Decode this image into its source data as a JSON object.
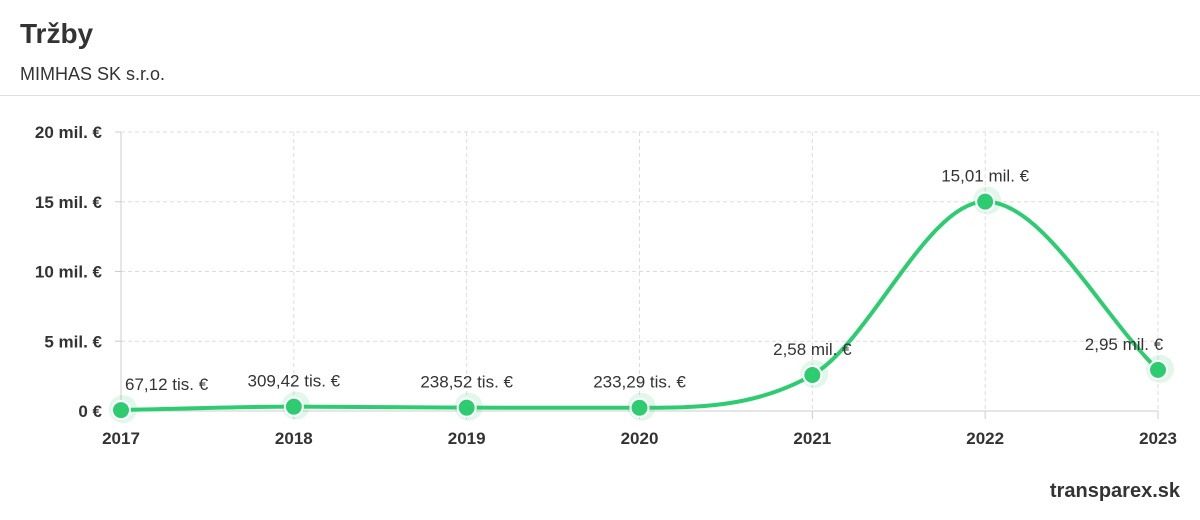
{
  "header": {
    "title": "Tržby",
    "subtitle": "MIMHAS SK s.r.o."
  },
  "credit": "transparex.sk",
  "colors": {
    "line": "#2ecc71",
    "grid": "#dddddd",
    "axis": "#cccccc",
    "text": "#333333"
  },
  "chart_data": {
    "type": "line",
    "x": [
      "2017",
      "2018",
      "2019",
      "2020",
      "2021",
      "2022",
      "2023"
    ],
    "series": [
      {
        "values": [
          67120,
          309420,
          238520,
          233290,
          2580000,
          15010000,
          2950000
        ],
        "labels": [
          "67,12 tis. €",
          "309,42 tis. €",
          "238,52 tis. €",
          "233,29 tis. €",
          "2,58 mil. €",
          "15,01 mil. €",
          "2,95 mil. €"
        ]
      }
    ],
    "yticks": [
      {
        "value": 0,
        "label": "0 €"
      },
      {
        "value": 5000000,
        "label": "5 mil. €"
      },
      {
        "value": 10000000,
        "label": "10 mil. €"
      },
      {
        "value": 15000000,
        "label": "15 mil. €"
      },
      {
        "value": 20000000,
        "label": "20 mil. €"
      }
    ],
    "ylim": [
      0,
      20000000
    ],
    "grid": true,
    "smooth": true
  }
}
